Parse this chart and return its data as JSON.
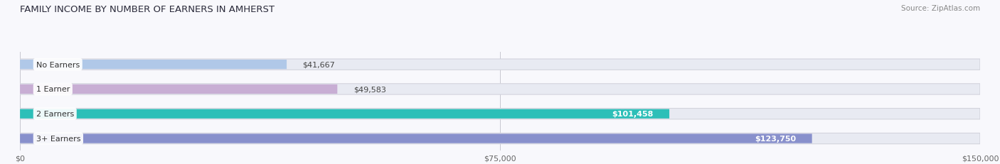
{
  "title": "FAMILY INCOME BY NUMBER OF EARNERS IN AMHERST",
  "source": "Source: ZipAtlas.com",
  "categories": [
    "No Earners",
    "1 Earner",
    "2 Earners",
    "3+ Earners"
  ],
  "values": [
    41667,
    49583,
    101458,
    123750
  ],
  "labels": [
    "$41,667",
    "$49,583",
    "$101,458",
    "$123,750"
  ],
  "bar_colors": [
    "#b0c8e8",
    "#c8aed4",
    "#2dbfb8",
    "#8890cc"
  ],
  "bar_bg_color": "#e8eaf2",
  "bar_bg_edge": "#d0d0da",
  "xmax": 150000,
  "xticks": [
    0,
    75000,
    150000
  ],
  "xticklabels": [
    "$0",
    "$75,000",
    "$150,000"
  ],
  "title_fontsize": 9.5,
  "source_fontsize": 7.5,
  "background_color": "#f8f8fc"
}
